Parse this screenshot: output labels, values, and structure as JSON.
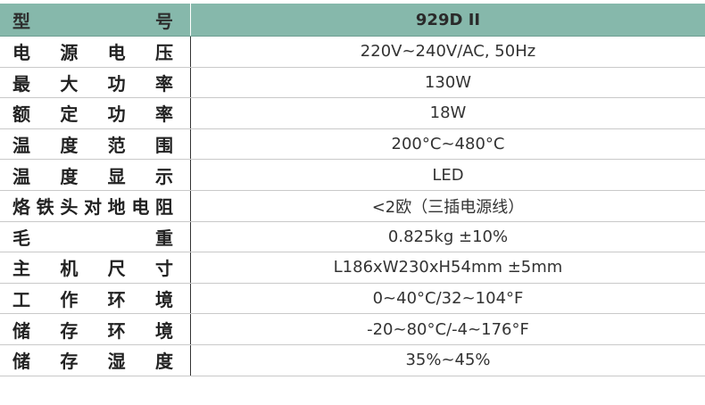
{
  "table": {
    "header": [
      "型号",
      "929D II"
    ],
    "rows": [
      [
        "电源电压",
        "220V~240V/AC, 50Hz"
      ],
      [
        "最大功率",
        "130W"
      ],
      [
        "额定功率",
        "18W"
      ],
      [
        "温度范围",
        "200°C~480°C"
      ],
      [
        "温度显示",
        "LED"
      ],
      [
        "烙铁头对地电阻",
        "<2欧（三插电源线）"
      ],
      [
        "毛重",
        "0.825kg ±10%"
      ],
      [
        "主机尺寸",
        "L186xW230xH54mm ±5mm"
      ],
      [
        "工作环境",
        "0~40°C/32~104°F"
      ],
      [
        "储存环境",
        "-20~80°C/-4~176°F"
      ],
      [
        "储存湿度",
        "35%~45%"
      ]
    ]
  }
}
